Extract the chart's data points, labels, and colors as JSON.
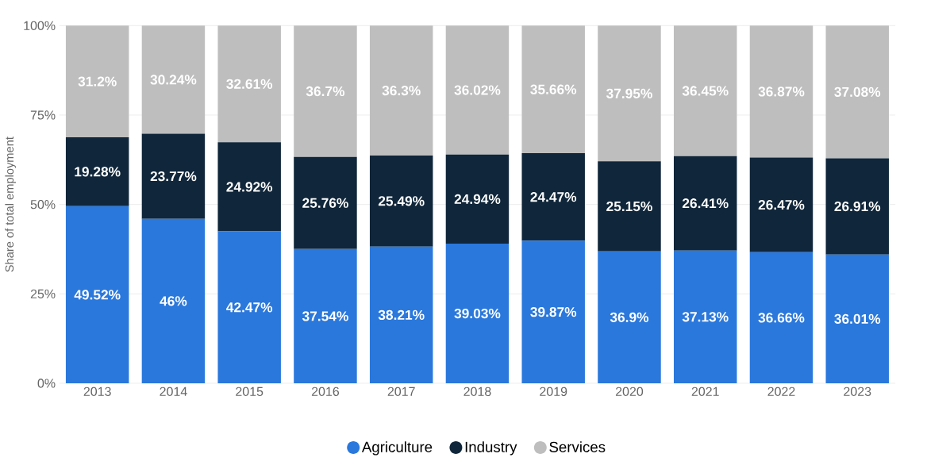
{
  "chart_data": {
    "type": "bar",
    "stacked": true,
    "ylabel": "Share of total employment",
    "categories": [
      "2013",
      "2014",
      "2015",
      "2016",
      "2017",
      "2018",
      "2019",
      "2020",
      "2021",
      "2022",
      "2023"
    ],
    "series": [
      {
        "name": "Agriculture",
        "color": "#2a78dc",
        "values": [
          49.52,
          46,
          42.47,
          37.54,
          38.21,
          39.03,
          39.87,
          36.9,
          37.13,
          36.66,
          36.01
        ],
        "value_labels": [
          "49.52%",
          "46%",
          "42.47%",
          "37.54%",
          "38.21%",
          "39.03%",
          "39.87%",
          "36.9%",
          "37.13%",
          "36.66%",
          "36.01%"
        ]
      },
      {
        "name": "Industry",
        "color": "#10263a",
        "values": [
          19.28,
          23.77,
          24.92,
          25.76,
          25.49,
          24.94,
          24.47,
          25.15,
          26.41,
          26.47,
          26.91
        ],
        "value_labels": [
          "19.28%",
          "23.77%",
          "24.92%",
          "25.76%",
          "25.49%",
          "24.94%",
          "24.47%",
          "25.15%",
          "26.41%",
          "26.47%",
          "26.91%"
        ]
      },
      {
        "name": "Services",
        "color": "#bebebe",
        "values": [
          31.2,
          30.24,
          32.61,
          36.7,
          36.3,
          36.02,
          35.66,
          37.95,
          36.45,
          36.87,
          37.08
        ],
        "value_labels": [
          "31.2%",
          "30.24%",
          "32.61%",
          "36.7%",
          "36.3%",
          "36.02%",
          "35.66%",
          "37.95%",
          "36.45%",
          "36.87%",
          "37.08%"
        ]
      }
    ],
    "ylim": [
      0,
      100
    ],
    "yticks": [
      {
        "value": 0,
        "label": "0%"
      },
      {
        "value": 25,
        "label": "25%"
      },
      {
        "value": 50,
        "label": "50%"
      },
      {
        "value": 75,
        "label": "75%"
      },
      {
        "value": 100,
        "label": "100%"
      }
    ],
    "grid": "y",
    "legend": "bottom"
  }
}
